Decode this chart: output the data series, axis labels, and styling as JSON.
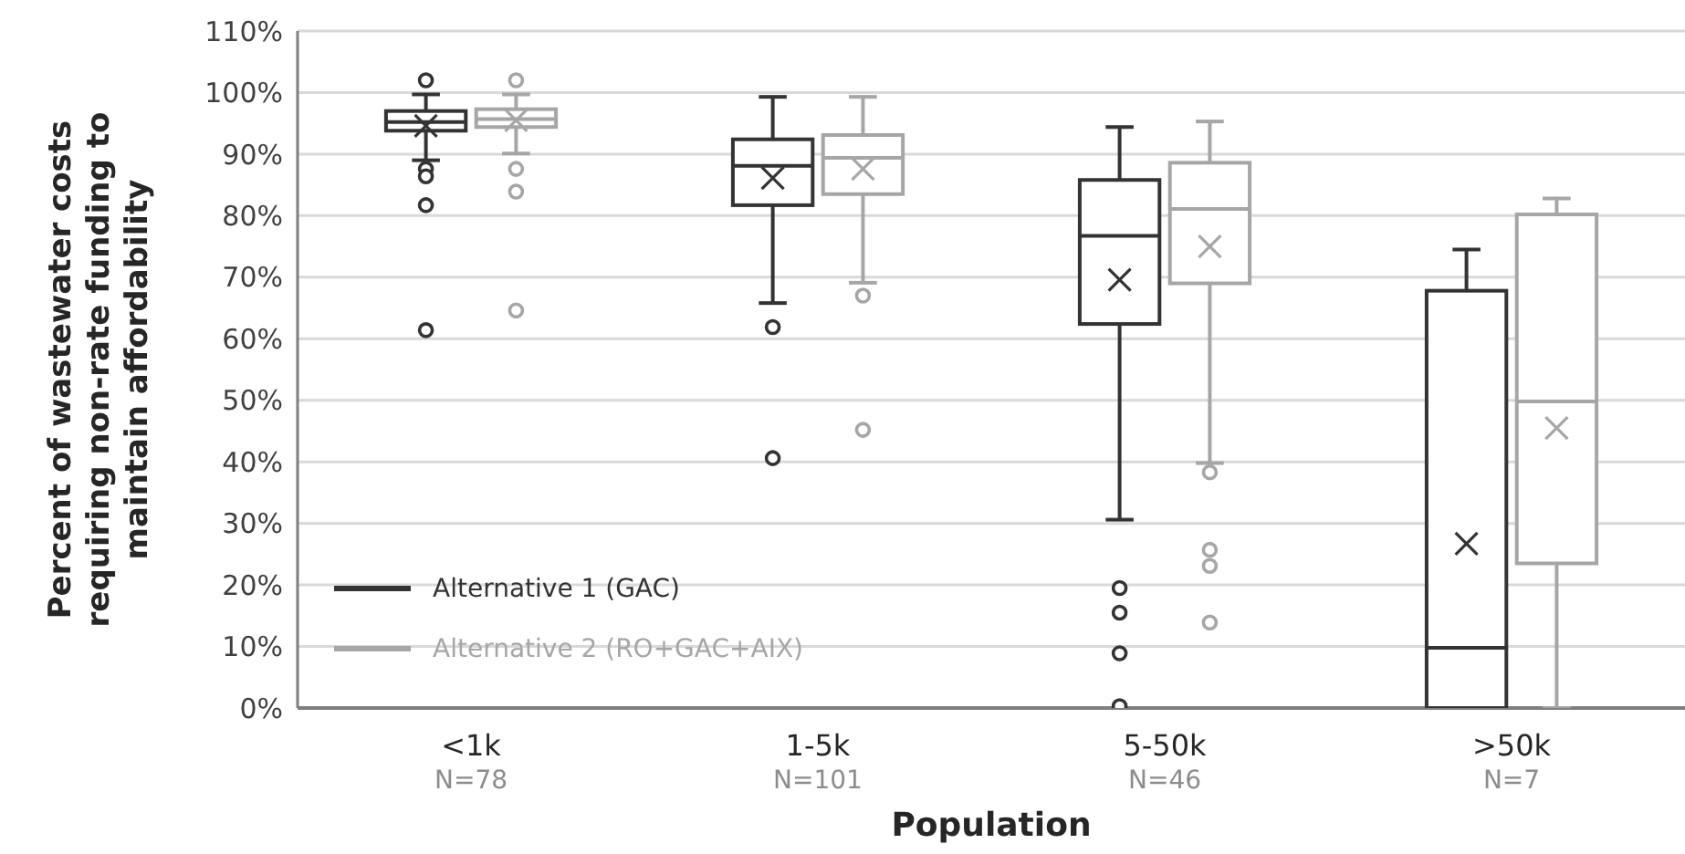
{
  "chart_data": {
    "type": "box",
    "xlabel": "Population",
    "ylabel": "Percent of wastewater costs requiring non-rate funding to maintain affordability",
    "categories": [
      "<1k",
      "1-5k",
      "5-50k",
      ">50k"
    ],
    "annotations": [
      "N=78",
      "N=101",
      "N=46",
      "N=7"
    ],
    "ylim": [
      0,
      110
    ],
    "yticks": [
      {
        "value": 0,
        "label": "0%"
      },
      {
        "value": 10,
        "label": "10%"
      },
      {
        "value": 20,
        "label": "20%"
      },
      {
        "value": 30,
        "label": "30%"
      },
      {
        "value": 40,
        "label": "40%"
      },
      {
        "value": 50,
        "label": "50%"
      },
      {
        "value": 60,
        "label": "60%"
      },
      {
        "value": 70,
        "label": "70%"
      },
      {
        "value": 80,
        "label": "80%"
      },
      {
        "value": 90,
        "label": "90%"
      },
      {
        "value": 100,
        "label": "100%"
      },
      {
        "value": 110,
        "label": "110%"
      }
    ],
    "grid": "y",
    "legend": "bottom left",
    "series": [
      {
        "name": "Alternative 1 (GAC)",
        "color": "#333333",
        "boxes": [
          {
            "low": 89,
            "q1": 93.8,
            "median": 95.2,
            "q3": 97,
            "high": 99.7,
            "mean": 94.6,
            "outliers": [
              102,
              87.6,
              86.4,
              81.7,
              61.4
            ]
          },
          {
            "low": 65.8,
            "q1": 81.7,
            "median": 88.1,
            "q3": 92.4,
            "high": 99.3,
            "mean": 86.1,
            "outliers": [
              61.9,
              40.6
            ]
          },
          {
            "low": 30.6,
            "q1": 62.4,
            "median": 76.7,
            "q3": 85.8,
            "high": 94.4,
            "mean": 69.6,
            "outliers": [
              19.5,
              15.5,
              8.9,
              0.3
            ]
          },
          {
            "low": 0,
            "q1": 0,
            "median": 9.8,
            "q3": 67.8,
            "high": 74.5,
            "mean": 26.7
          }
        ]
      },
      {
        "name": "Alternative 2 (RO+GAC+AIX)",
        "color": "#a6a6a6",
        "boxes": [
          {
            "low": 90.1,
            "q1": 94.4,
            "median": 95.7,
            "q3": 97.3,
            "high": 99.7,
            "mean": 95.5,
            "outliers": [
              102,
              87.6,
              83.9,
              64.6
            ]
          },
          {
            "low": 69.1,
            "q1": 83.5,
            "median": 89.4,
            "q3": 93.1,
            "high": 99.3,
            "mean": 87.6,
            "outliers": [
              67,
              45.2
            ]
          },
          {
            "low": 39.8,
            "q1": 69,
            "median": 81.1,
            "q3": 88.6,
            "high": 95.3,
            "mean": 75,
            "outliers": [
              38.3,
              25.7,
              23.1,
              13.9
            ]
          },
          {
            "low": 0,
            "q1": 23.5,
            "median": 49.8,
            "q3": 80.2,
            "high": 82.8,
            "mean": 45.5
          }
        ]
      }
    ]
  }
}
